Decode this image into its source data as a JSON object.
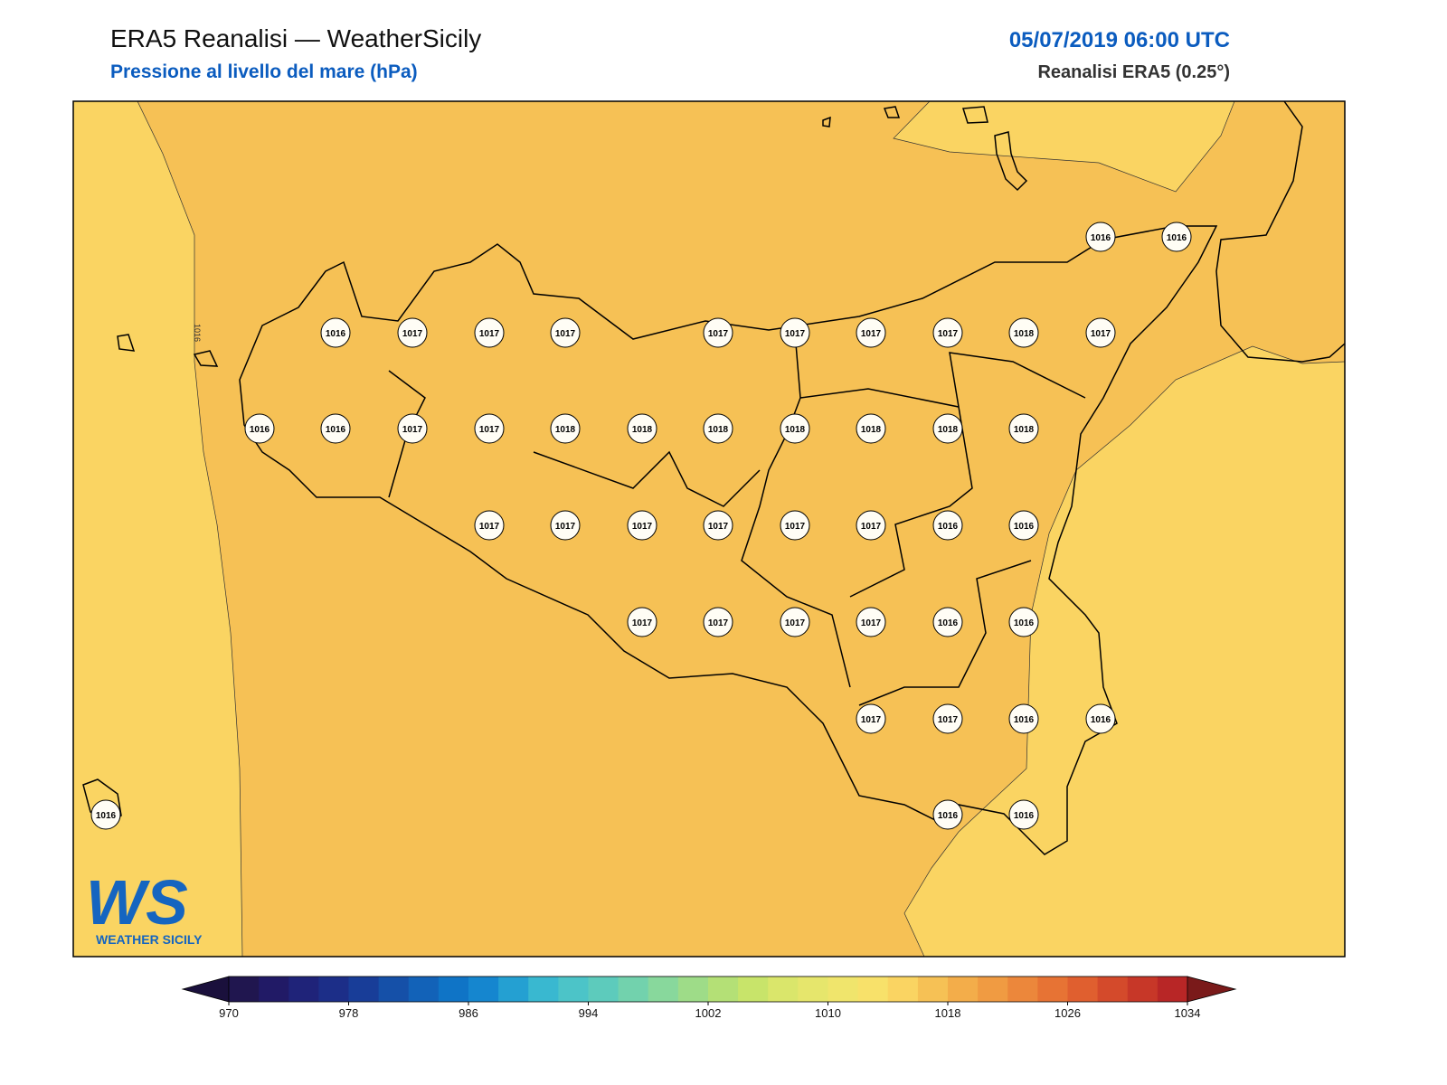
{
  "header": {
    "title": "ERA5 Reanalisi — WeatherSicily",
    "subtitle": "Pressione al livello del mare (hPa)",
    "date": "05/07/2019 06:00 UTC",
    "source": "Reanalisi ERA5 (0.25°)"
  },
  "map": {
    "contour_label": 1016,
    "pressure_labels": [
      1016,
      1016,
      1016,
      1017,
      1017,
      1017,
      1017,
      1017,
      1017,
      1017,
      1018,
      1017,
      1016,
      1016,
      1017,
      1017,
      1018,
      1018,
      1018,
      1018,
      1018,
      1018,
      1018,
      1017,
      1017,
      1017,
      1017,
      1017,
      1017,
      1016,
      1016,
      1017,
      1017,
      1017,
      1017,
      1016,
      1016,
      1017,
      1017,
      1016,
      1016,
      1016,
      1016,
      1016
    ]
  },
  "colorbar": {
    "min": 970,
    "max": 1034,
    "ticks": [
      970,
      978,
      986,
      994,
      1002,
      1010,
      1018,
      1026,
      1034
    ],
    "under_color": "#1a103c",
    "over_color": "#7a1a1a",
    "colors": [
      "#20164f",
      "#211a66",
      "#1f2379",
      "#1c2e88",
      "#183d98",
      "#1550a8",
      "#1262b8",
      "#0f74c6",
      "#1586cf",
      "#24a0d2",
      "#39b8d0",
      "#4cc4c8",
      "#5dcbbc",
      "#72d2ad",
      "#88d89c",
      "#9edc88",
      "#b4e076",
      "#c8e46a",
      "#dae66b",
      "#e6e66c",
      "#f0e56c",
      "#f8e16a",
      "#fad462",
      "#f6c155",
      "#f3ad4a",
      "#f09b42",
      "#ec873b",
      "#e77334",
      "#e05f2f",
      "#d44a2b",
      "#c73728",
      "#b82626"
    ]
  },
  "logo": {
    "mark": "WS",
    "name": "WEATHER SICILY"
  }
}
